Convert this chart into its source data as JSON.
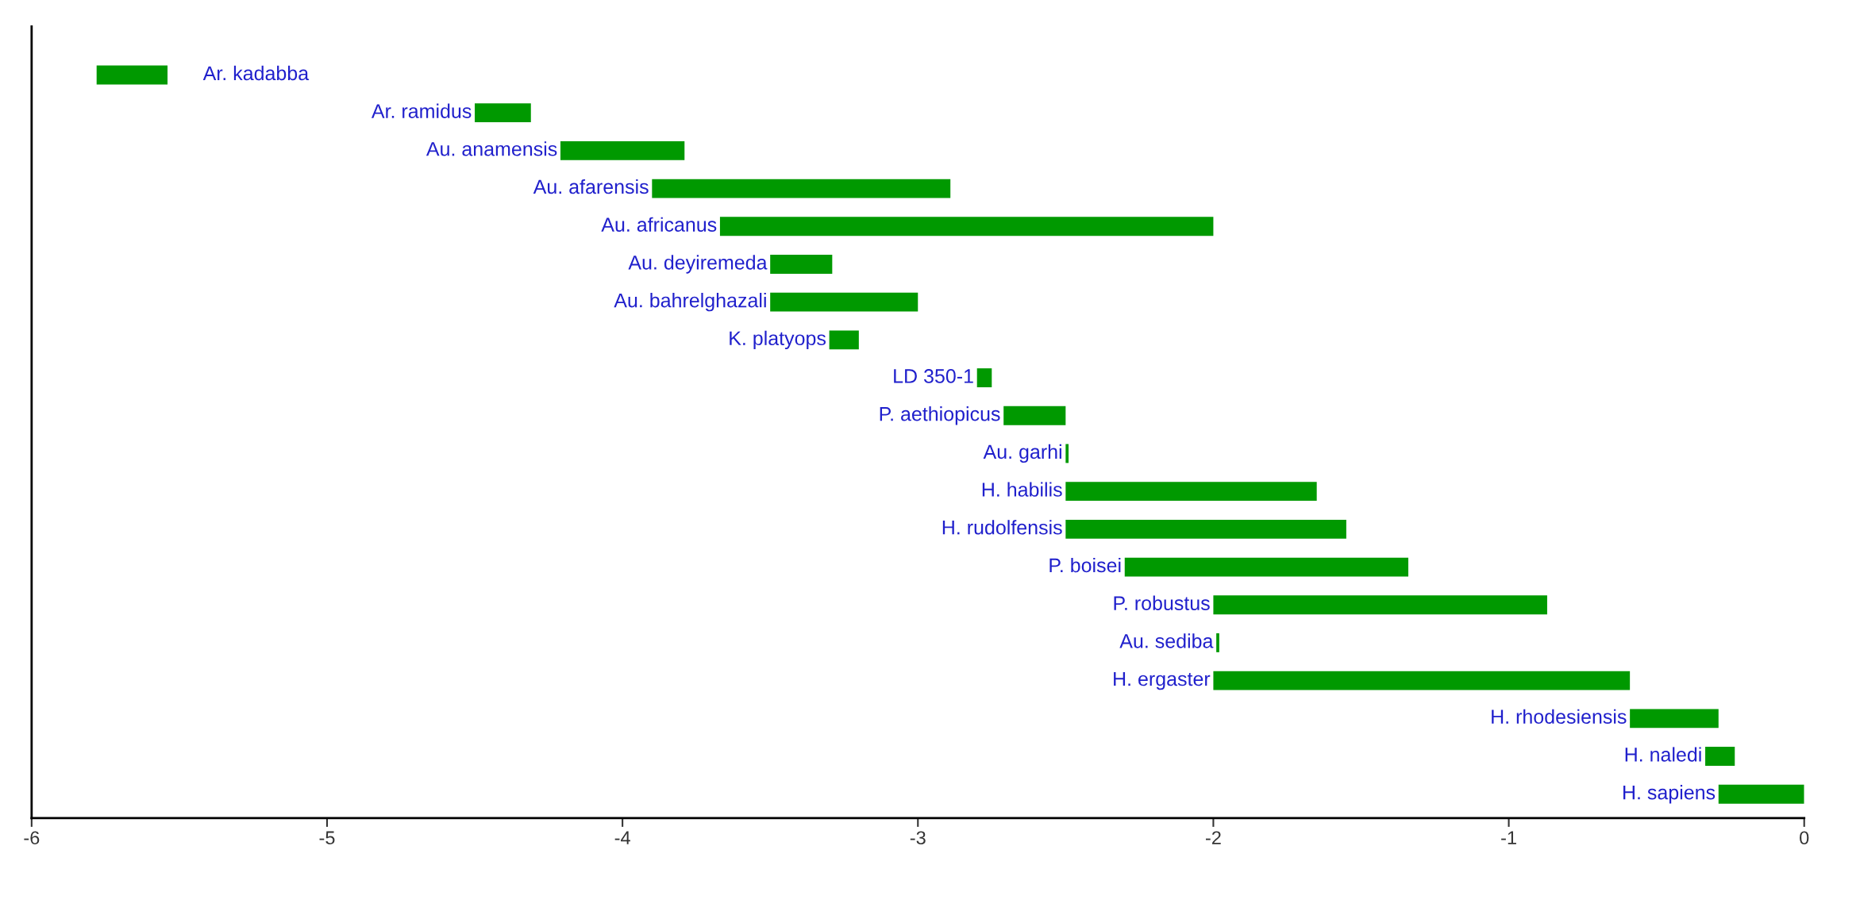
{
  "chart_data": {
    "type": "bar",
    "orientation": "horizontal",
    "categories": [
      "Ar. kadabba",
      "Ar. ramidus",
      "Au. anamensis",
      "Au. afarensis",
      "Au. africanus",
      "Au. deyiremeda",
      "Au. bahrelghazali",
      "K. platyops",
      "LD 350-1",
      "P. aethiopicus",
      "Au. garhi",
      "H. habilis",
      "H. rudolfensis",
      "P. boisei",
      "P. robustus",
      "Au. sediba",
      "H. ergaster",
      "H. rhodesiensis",
      "H. naledi",
      "H. sapiens"
    ],
    "base": [
      -5.78,
      -4.5,
      -4.21,
      -3.9,
      -3.67,
      -3.5,
      -3.5,
      -3.3,
      -2.8,
      -2.71,
      -2.5,
      -2.5,
      -2.5,
      -2.3,
      -2.0,
      -1.99,
      -2.0,
      -0.59,
      -0.335,
      -0.29
    ],
    "values": [
      0.24,
      0.19,
      0.42,
      1.01,
      1.67,
      0.21,
      0.5,
      0.1,
      0.05,
      0.21,
      0.01,
      0.85,
      0.95,
      0.96,
      1.13,
      0.01,
      1.41,
      0.3,
      0.1,
      0.29
    ],
    "color": "#009900",
    "xlim": [
      -6,
      0
    ],
    "xticks": [
      -6,
      -5,
      -4,
      -3,
      -2,
      -1,
      0
    ],
    "grid": false,
    "legend": false
  }
}
